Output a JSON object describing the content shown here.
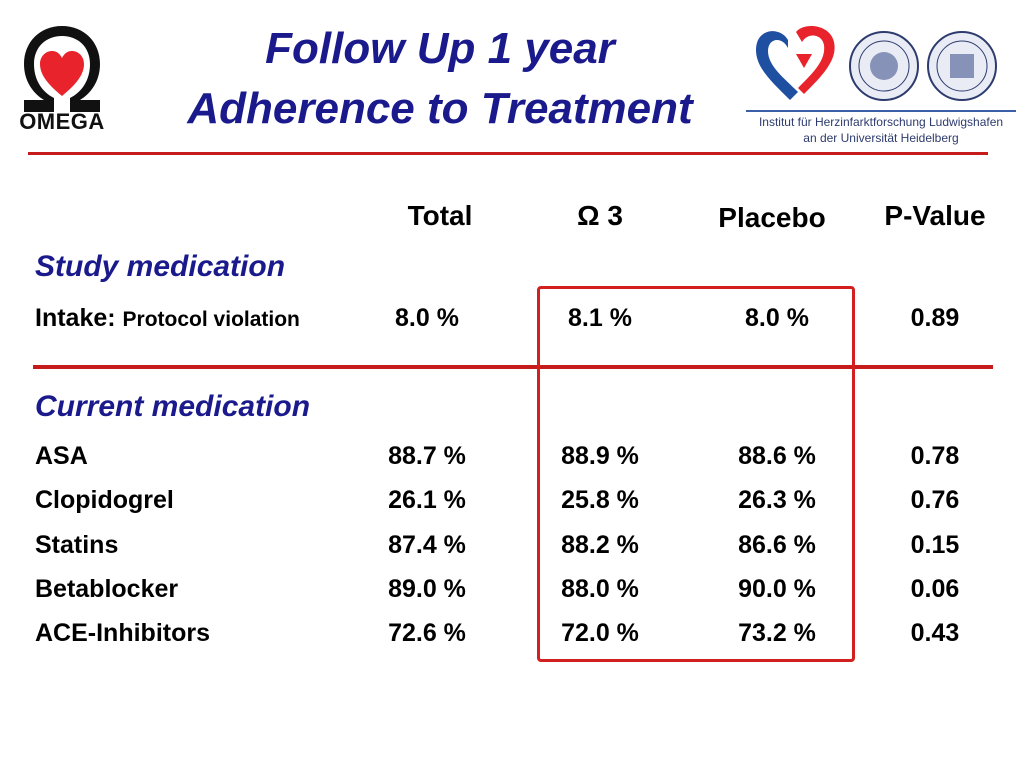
{
  "header": {
    "title_line1": "Follow Up 1 year",
    "title_line2": "Adherence to Treatment",
    "logo_text": "OMEGA",
    "institute_line1": "Institut für Herzinfarktforschung Ludwigshafen",
    "institute_line2": "an der Universität Heidelberg"
  },
  "colors": {
    "title": "#1a1a8c",
    "accent_red": "#c51b1b",
    "heart": "#e8232b",
    "institute_blue": "#1f4fa0"
  },
  "table": {
    "columns": [
      "Total",
      "Ω 3",
      "Placebo",
      "P-Value"
    ],
    "study_section": "Study medication",
    "study_row": {
      "label": "Intake:",
      "sublabel": "Protocol violation",
      "total": "8.0 %",
      "omega": "8.1 %",
      "placebo": "8.0 %",
      "pvalue": "0.89"
    },
    "current_section": "Current medication",
    "rows": [
      {
        "label": "ASA",
        "total": "88.7 %",
        "omega": "88.9 %",
        "placebo": "88.6 %",
        "pvalue": "0.78"
      },
      {
        "label": "Clopidogrel",
        "total": "26.1 %",
        "omega": "25.8 %",
        "placebo": "26.3 %",
        "pvalue": "0.76"
      },
      {
        "label": "Statins",
        "total": "87.4 %",
        "omega": "88.2 %",
        "placebo": "86.6 %",
        "pvalue": "0.15"
      },
      {
        "label": "Betablocker",
        "total": "89.0 %",
        "omega": "88.0 %",
        "placebo": "90.0 %",
        "pvalue": "0.06"
      },
      {
        "label": "ACE-Inhibitors",
        "total": "72.6 %",
        "omega": "72.0 %",
        "placebo": "73.2 %",
        "pvalue": "0.43"
      }
    ]
  }
}
